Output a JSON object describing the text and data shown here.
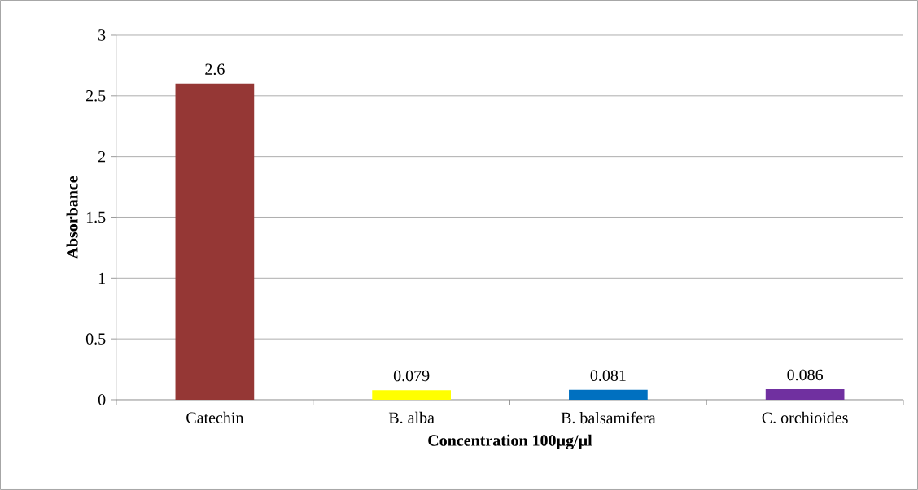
{
  "chart_data": {
    "type": "bar",
    "xlabel": "Concentration 100µg/µl",
    "ylabel": "Absorbance",
    "categories": [
      "Catechin",
      "B. alba",
      "B. balsamifera",
      "C. orchioides"
    ],
    "values": [
      2.6,
      0.079,
      0.081,
      0.086
    ],
    "colors": [
      "#953735",
      "#ffff00",
      "#0070c0",
      "#7030a0"
    ],
    "ylim": [
      0,
      3
    ],
    "yticks": [
      0,
      0.5,
      1,
      1.5,
      2,
      2.5,
      3
    ],
    "grid": "y",
    "data_labels": true
  }
}
